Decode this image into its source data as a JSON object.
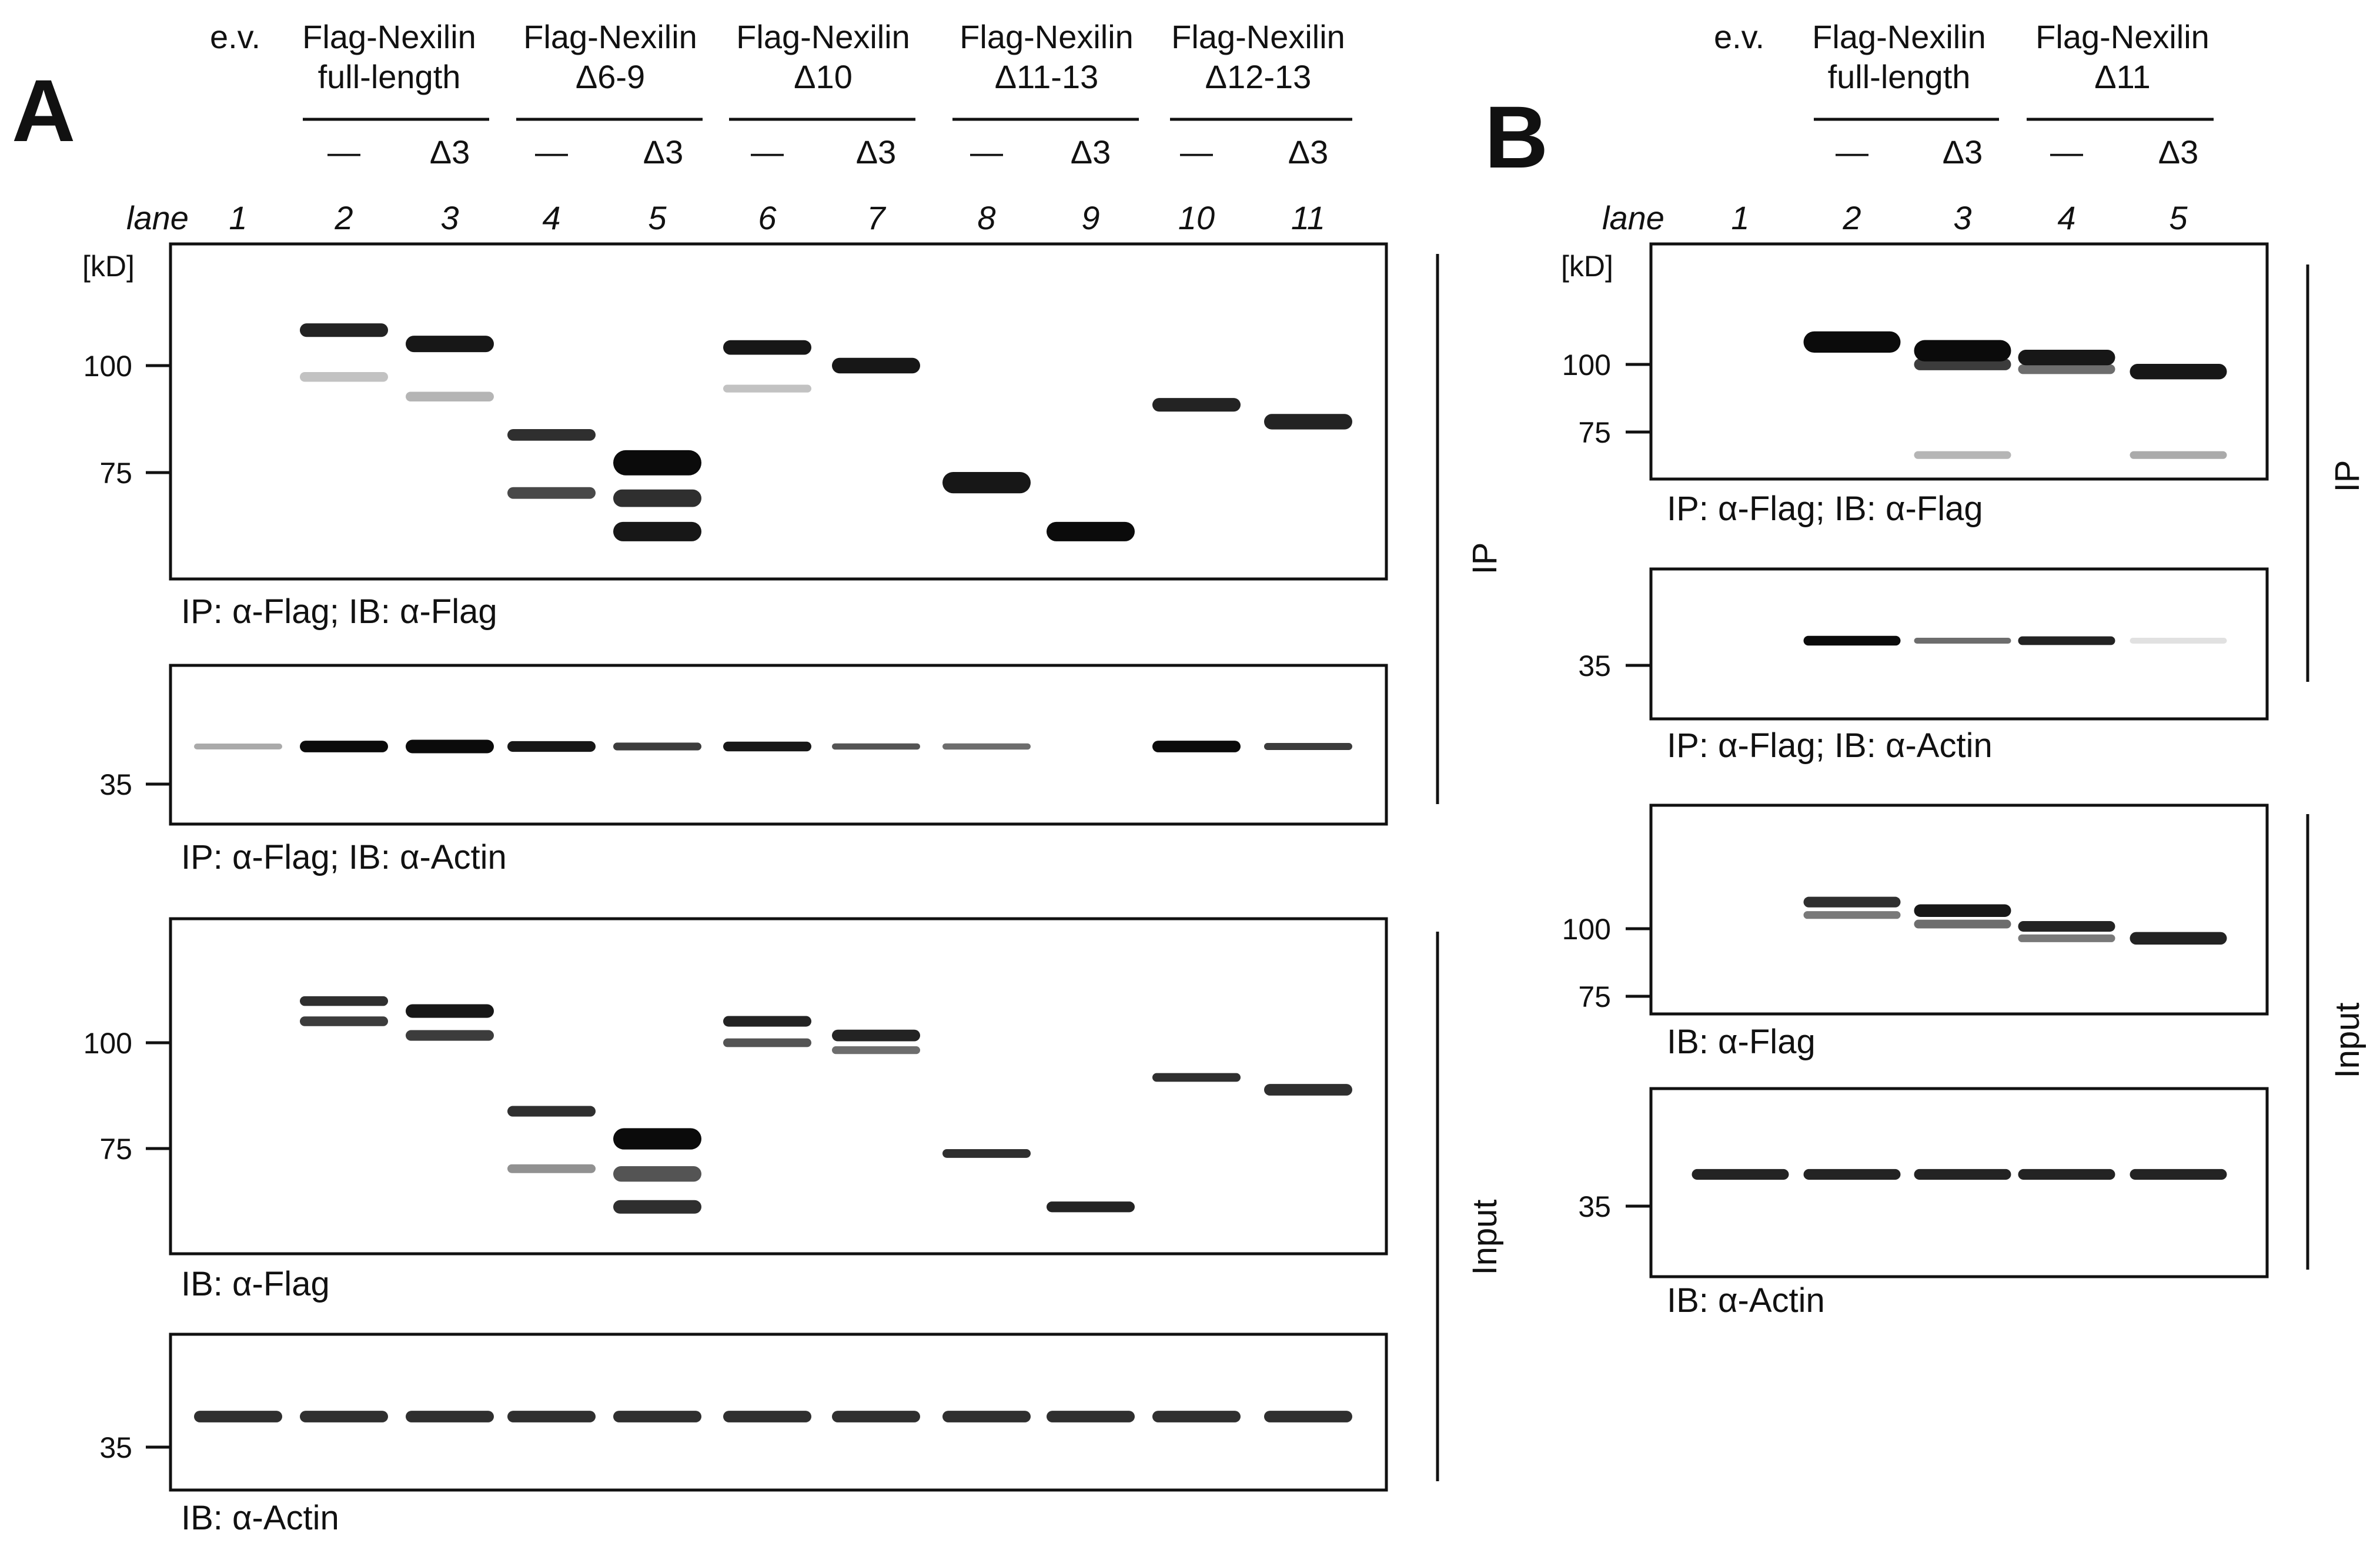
{
  "panels": {
    "A": {
      "letter": "A",
      "header": {
        "groups": [
          {
            "id": "ev",
            "line1": "e.v.",
            "line2": ""
          },
          {
            "id": "fl",
            "line1": "Flag-Nexilin",
            "line2": "full-length"
          },
          {
            "id": "d69",
            "line1": "Flag-Nexilin",
            "line2": "Δ6-9"
          },
          {
            "id": "d10",
            "line1": "Flag-Nexilin",
            "line2": "Δ10"
          },
          {
            "id": "d1113",
            "line1": "Flag-Nexilin",
            "line2": "Δ11-13"
          },
          {
            "id": "d1213",
            "line1": "Flag-Nexilin",
            "line2": "Δ12-13"
          }
        ],
        "subs": [
          "—",
          "Δ3",
          "—",
          "Δ3",
          "—",
          "Δ3",
          "—",
          "Δ3",
          "—",
          "Δ3"
        ]
      },
      "lane_word": "lane",
      "lanes": [
        "1",
        "2",
        "3",
        "4",
        "5",
        "6",
        "7",
        "8",
        "9",
        "10",
        "11"
      ],
      "kd_unit": "[kD]",
      "blots": [
        {
          "id": "ip-flag",
          "caption": "IP: α-Flag; IB: α-Flag",
          "markers": [
            "100",
            "75"
          ],
          "bands": [
            [
              2,
              110,
              70,
              0.9
            ],
            [
              2,
              97,
              50,
              0.25
            ],
            [
              3,
              106,
              85,
              0.95
            ],
            [
              3,
              92,
              50,
              0.3
            ],
            [
              4,
              83,
              60,
              0.85
            ],
            [
              4,
              71,
              60,
              0.75
            ],
            [
              5,
              77,
              130,
              1.0
            ],
            [
              5,
              70,
              90,
              0.85
            ],
            [
              5,
              64,
              100,
              0.95
            ],
            [
              6,
              105,
              75,
              0.95
            ],
            [
              6,
              94,
              40,
              0.25
            ],
            [
              7,
              100,
              80,
              0.95
            ],
            [
              8,
              73,
              110,
              0.95
            ],
            [
              9,
              64,
              100,
              1.0
            ],
            [
              10,
              90,
              70,
              0.9
            ],
            [
              11,
              86,
              80,
              0.9
            ]
          ]
        },
        {
          "id": "ip-actin",
          "caption": "IP: α-Flag; IB: α-Actin",
          "markers": [
            "35"
          ],
          "bands": [
            [
              1,
              40,
              22,
              0.35
            ],
            [
              2,
              40,
              60,
              1.0
            ],
            [
              3,
              40,
              70,
              1.0
            ],
            [
              4,
              40,
              55,
              0.95
            ],
            [
              5,
              40,
              40,
              0.8
            ],
            [
              6,
              40,
              50,
              0.95
            ],
            [
              7,
              40,
              32,
              0.7
            ],
            [
              8,
              40,
              32,
              0.6
            ],
            [
              10,
              40,
              60,
              1.0
            ],
            [
              11,
              40,
              36,
              0.8
            ]
          ]
        },
        {
          "id": "in-flag",
          "caption": "IB: α-Flag",
          "markers": [
            "100",
            "75"
          ],
          "bands": [
            [
              2,
              112,
              50,
              0.85
            ],
            [
              2,
              106,
              50,
              0.8
            ],
            [
              3,
              109,
              70,
              0.95
            ],
            [
              3,
              102,
              55,
              0.8
            ],
            [
              4,
              83,
              55,
              0.85
            ],
            [
              4,
              71,
              45,
              0.45
            ],
            [
              5,
              77,
              110,
              1.0
            ],
            [
              5,
              70,
              80,
              0.7
            ],
            [
              5,
              64,
              70,
              0.85
            ],
            [
              6,
              106,
              55,
              0.9
            ],
            [
              6,
              100,
              45,
              0.7
            ],
            [
              7,
              102,
              60,
              0.9
            ],
            [
              7,
              98,
              40,
              0.6
            ],
            [
              8,
              74,
              45,
              0.85
            ],
            [
              9,
              64,
              55,
              0.9
            ],
            [
              10,
              91,
              45,
              0.85
            ],
            [
              11,
              88,
              60,
              0.85
            ]
          ]
        },
        {
          "id": "in-actin",
          "caption": "IB: α-Actin",
          "markers": [
            "35"
          ],
          "bands": [
            [
              1,
              40,
              60,
              0.85
            ],
            [
              2,
              40,
              60,
              0.85
            ],
            [
              3,
              40,
              60,
              0.85
            ],
            [
              4,
              40,
              60,
              0.85
            ],
            [
              5,
              40,
              60,
              0.85
            ],
            [
              6,
              40,
              60,
              0.85
            ],
            [
              7,
              40,
              60,
              0.85
            ],
            [
              8,
              40,
              60,
              0.85
            ],
            [
              9,
              40,
              60,
              0.85
            ],
            [
              10,
              40,
              60,
              0.85
            ],
            [
              11,
              40,
              60,
              0.85
            ]
          ]
        }
      ],
      "side_labels": [
        "IP",
        "Input"
      ]
    },
    "B": {
      "letter": "B",
      "header": {
        "groups": [
          {
            "id": "ev",
            "line1": "e.v.",
            "line2": ""
          },
          {
            "id": "fl",
            "line1": "Flag-Nexilin",
            "line2": "full-length"
          },
          {
            "id": "d11",
            "line1": "Flag-Nexilin",
            "line2": "Δ11"
          }
        ],
        "subs": [
          "—",
          "Δ3",
          "—",
          "Δ3"
        ]
      },
      "lane_word": "lane",
      "lanes": [
        "1",
        "2",
        "3",
        "4",
        "5"
      ],
      "kd_unit": "[kD]",
      "blots": [
        {
          "id": "ip-flag",
          "caption": "IP: α-Flag; IB: α-Flag",
          "markers": [
            "100",
            "75"
          ],
          "bands": [
            [
              2,
              110,
              110,
              1.0
            ],
            [
              3,
              106,
              110,
              1.0
            ],
            [
              3,
              100,
              60,
              0.8
            ],
            [
              4,
              103,
              80,
              0.95
            ],
            [
              4,
              98,
              50,
              0.6
            ],
            [
              5,
              97,
              80,
              0.95
            ],
            [
              3,
              68,
              40,
              0.3
            ],
            [
              5,
              68,
              40,
              0.35
            ]
          ]
        },
        {
          "id": "ip-actin",
          "caption": "IP: α-Flag; IB: α-Actin",
          "markers": [
            "35"
          ],
          "bands": [
            [
              2,
              36,
              50,
              1.0
            ],
            [
              3,
              36,
              30,
              0.6
            ],
            [
              4,
              36,
              45,
              0.9
            ],
            [
              5,
              36,
              15,
              0.12
            ]
          ]
        },
        {
          "id": "in-flag",
          "caption": "IB: α-Flag",
          "markers": [
            "100",
            "75"
          ],
          "bands": [
            [
              2,
              112,
              55,
              0.85
            ],
            [
              2,
              106,
              40,
              0.55
            ],
            [
              3,
              108,
              65,
              0.95
            ],
            [
              3,
              102,
              45,
              0.6
            ],
            [
              4,
              101,
              55,
              0.9
            ],
            [
              4,
              96,
              40,
              0.55
            ],
            [
              5,
              96,
              65,
              0.9
            ]
          ]
        },
        {
          "id": "in-actin",
          "caption": "IB: α-Actin",
          "markers": [
            "35"
          ],
          "bands": [
            [
              1,
              40,
              55,
              0.9
            ],
            [
              2,
              40,
              55,
              0.9
            ],
            [
              3,
              40,
              55,
              0.9
            ],
            [
              4,
              40,
              55,
              0.9
            ],
            [
              5,
              40,
              55,
              0.9
            ]
          ]
        }
      ],
      "side_labels": [
        "IP",
        "Input"
      ]
    }
  }
}
